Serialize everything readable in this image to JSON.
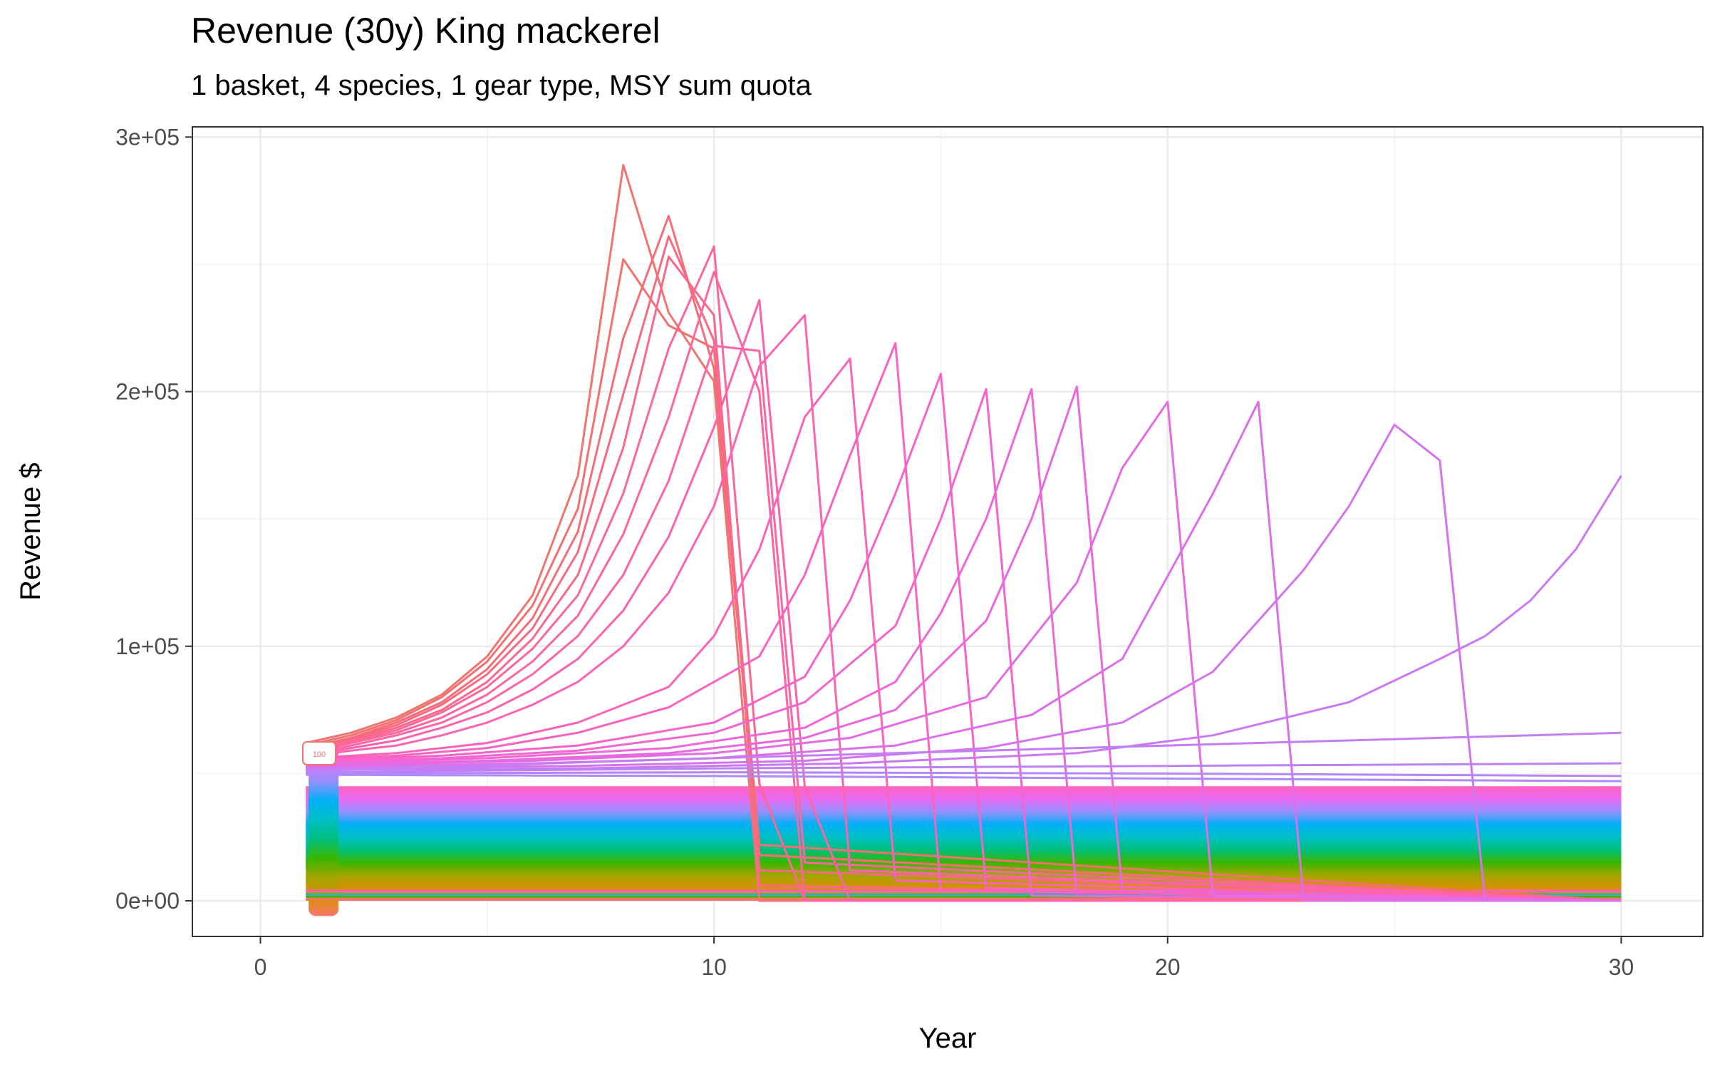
{
  "title": "Revenue (30y) King mackerel",
  "subtitle": "1 basket, 4 species, 1 gear type, MSY sum quota",
  "chart_data": {
    "type": "line",
    "xlabel": "Year",
    "ylabel": "Revenue $",
    "xlim": [
      -1.5,
      31.8
    ],
    "ylim": [
      -14000,
      304000
    ],
    "x_ticks": [
      0,
      10,
      20,
      30
    ],
    "x_tick_labels": [
      "0",
      "10",
      "20",
      "30"
    ],
    "y_ticks": [
      0,
      100000,
      200000,
      300000
    ],
    "y_tick_labels": [
      "0e+00",
      "1e+05",
      "2e+05",
      "3e+05"
    ],
    "grid": true,
    "legend": "none",
    "label_box_text": "100",
    "series_count_note": "100 scenario runs colored by hue gradient",
    "flat_band": {
      "x_start": 1,
      "x_end": 30,
      "low": 0,
      "high": 45000,
      "colors": [
        "#F8766D",
        "#D89000",
        "#A3A500",
        "#39B600",
        "#00BF7D",
        "#00BFC4",
        "#00B0F6",
        "#9590FF",
        "#E76BF3",
        "#FF62BC"
      ]
    },
    "peak_series": [
      {
        "x": [
          1,
          2,
          3,
          4,
          5,
          6,
          7,
          8,
          9,
          10,
          11,
          30
        ],
        "y": [
          62000,
          66000,
          72000,
          81000,
          96000,
          120000,
          167000,
          289000,
          231000,
          204000,
          0,
          0
        ],
        "color": "#F0746F"
      },
      {
        "x": [
          1,
          2,
          3,
          4,
          5,
          6,
          7,
          8,
          9,
          10,
          11,
          30
        ],
        "y": [
          61000,
          65000,
          71000,
          80000,
          94000,
          116000,
          154000,
          252000,
          226000,
          217000,
          22000,
          0
        ],
        "color": "#F3706F"
      },
      {
        "x": [
          1,
          2,
          3,
          4,
          5,
          6,
          7,
          8,
          9,
          10,
          11,
          30
        ],
        "y": [
          60000,
          64000,
          70000,
          78000,
          91000,
          111000,
          145000,
          221000,
          269000,
          209000,
          18000,
          0
        ],
        "color": "#F56D77"
      },
      {
        "x": [
          1,
          2,
          3,
          4,
          5,
          6,
          7,
          8,
          9,
          10,
          11,
          30
        ],
        "y": [
          59500,
          63500,
          69000,
          77000,
          89000,
          107000,
          137000,
          199000,
          261000,
          220000,
          12000,
          0
        ],
        "color": "#F86A82"
      },
      {
        "x": [
          1,
          2,
          3,
          4,
          5,
          6,
          7,
          8,
          9,
          10,
          11,
          30
        ],
        "y": [
          59000,
          63000,
          68000,
          75000,
          86000,
          103000,
          128000,
          178000,
          253000,
          230000,
          6000,
          0
        ],
        "color": "#FA688C"
      },
      {
        "x": [
          1,
          2,
          3,
          4,
          5,
          6,
          7,
          8,
          9,
          10,
          11,
          12,
          30
        ],
        "y": [
          58500,
          62500,
          67000,
          74000,
          84000,
          99000,
          120000,
          160000,
          217000,
          257000,
          46000,
          0,
          0
        ],
        "color": "#FB6895"
      },
      {
        "x": [
          1,
          2,
          3,
          4,
          5,
          6,
          7,
          8,
          9,
          10,
          11,
          12,
          30
        ],
        "y": [
          58000,
          62000,
          66000,
          72000,
          81000,
          94000,
          112000,
          144000,
          190000,
          247000,
          200000,
          0,
          0
        ],
        "color": "#FC669D"
      },
      {
        "x": [
          1,
          2,
          3,
          4,
          5,
          6,
          7,
          8,
          9,
          10,
          11,
          12,
          30
        ],
        "y": [
          57500,
          61000,
          65000,
          70000,
          78000,
          89000,
          104000,
          128000,
          165000,
          218000,
          216000,
          15000,
          0
        ],
        "color": "#FD65A4"
      },
      {
        "x": [
          1,
          2,
          3,
          4,
          5,
          6,
          7,
          8,
          9,
          10,
          11,
          12,
          13,
          30
        ],
        "y": [
          57000,
          60000,
          63000,
          68000,
          74000,
          83000,
          95000,
          114000,
          143000,
          186000,
          236000,
          45000,
          0,
          0
        ],
        "color": "#FD63AA"
      },
      {
        "x": [
          1,
          2,
          3,
          4,
          5,
          6,
          7,
          8,
          9,
          10,
          11,
          12,
          13,
          30
        ],
        "y": [
          56500,
          59000,
          61000,
          65000,
          70000,
          77000,
          86000,
          100000,
          121000,
          155000,
          210000,
          230000,
          12000,
          0
        ],
        "color": "#FD63B1"
      },
      {
        "x": [
          1,
          3,
          5,
          7,
          9,
          10,
          11,
          12,
          13,
          14,
          30
        ],
        "y": [
          56000,
          58000,
          62000,
          70000,
          84000,
          104000,
          138000,
          190000,
          213000,
          8000,
          0
        ],
        "color": "#FC63B8"
      },
      {
        "x": [
          1,
          3,
          5,
          7,
          9,
          11,
          12,
          13,
          14,
          15,
          30
        ],
        "y": [
          55500,
          57000,
          60000,
          66000,
          76000,
          96000,
          128000,
          175000,
          219000,
          4000,
          0
        ],
        "color": "#FB62BF"
      },
      {
        "x": [
          1,
          4,
          7,
          10,
          12,
          13,
          14,
          15,
          16,
          30
        ],
        "y": [
          55000,
          57000,
          61000,
          70000,
          88000,
          118000,
          160000,
          207000,
          5000,
          0
        ],
        "color": "#F763C8"
      },
      {
        "x": [
          1,
          4,
          7,
          10,
          12,
          14,
          15,
          16,
          17,
          30
        ],
        "y": [
          54500,
          56000,
          59000,
          66000,
          78000,
          108000,
          150000,
          201000,
          2000,
          0
        ],
        "color": "#F464CF"
      },
      {
        "x": [
          1,
          5,
          9,
          12,
          14,
          15,
          16,
          17,
          18,
          30
        ],
        "y": [
          54000,
          56000,
          60000,
          68000,
          86000,
          113000,
          150000,
          201000,
          2000,
          0
        ],
        "color": "#EF66D6"
      },
      {
        "x": [
          1,
          5,
          9,
          12,
          14,
          16,
          17,
          18,
          19,
          30
        ],
        "y": [
          53500,
          55000,
          58000,
          64000,
          75000,
          110000,
          150000,
          202000,
          4000,
          0
        ],
        "color": "#EA68DD"
      },
      {
        "x": [
          1,
          6,
          10,
          13,
          16,
          18,
          19,
          20,
          21,
          30
        ],
        "y": [
          53000,
          55000,
          58000,
          64000,
          80000,
          125000,
          170000,
          196000,
          2000,
          0
        ],
        "color": "#E46BE3"
      },
      {
        "x": [
          1,
          6,
          10,
          14,
          17,
          19,
          21,
          22,
          23,
          30
        ],
        "y": [
          52500,
          54000,
          56000,
          61000,
          73000,
          95000,
          160000,
          196000,
          0,
          0
        ],
        "color": "#DC6EE8"
      },
      {
        "x": [
          1,
          7,
          12,
          16,
          19,
          21,
          23,
          24,
          25,
          26,
          27,
          30
        ],
        "y": [
          52000,
          53000,
          55000,
          60000,
          70000,
          90000,
          130000,
          155000,
          187000,
          173000,
          0,
          0
        ],
        "color": "#D374EE"
      },
      {
        "x": [
          1,
          7,
          13,
          18,
          21,
          24,
          26,
          27,
          28,
          29,
          30
        ],
        "y": [
          51500,
          52000,
          54000,
          58000,
          65000,
          78000,
          95000,
          104000,
          118000,
          138000,
          167000
        ],
        "color": "#CA79F2"
      },
      {
        "x": [
          1,
          10,
          20,
          30
        ],
        "y": [
          51000,
          56000,
          61000,
          66000
        ],
        "color": "#C27EF5"
      },
      {
        "x": [
          1,
          10,
          20,
          30
        ],
        "y": [
          50500,
          52000,
          53000,
          54000
        ],
        "color": "#BB82F7"
      },
      {
        "x": [
          1,
          10,
          20,
          30
        ],
        "y": [
          50000,
          50500,
          50000,
          49000
        ],
        "color": "#B486F9"
      },
      {
        "x": [
          1,
          10,
          20,
          30
        ],
        "y": [
          49500,
          49000,
          48000,
          47000
        ],
        "color": "#AD8AFB"
      }
    ]
  }
}
